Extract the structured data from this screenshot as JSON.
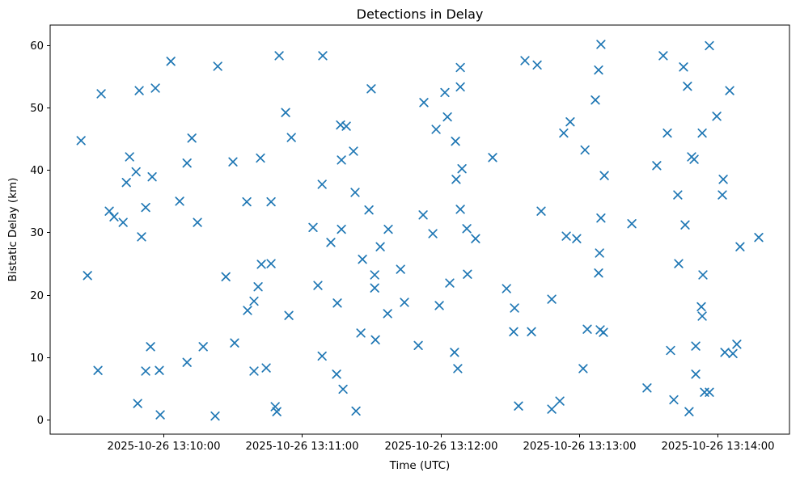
{
  "figure": {
    "title": "Detections in Delay",
    "x_axis_label": "Time (UTC)",
    "y_axis_label": "Bistatic Delay (km)"
  },
  "chart_data": {
    "type": "scatter",
    "title": "Detections in Delay",
    "xlabel": "Time (UTC)",
    "ylabel": "Bistatic Delay (km)",
    "marker": "x",
    "marker_color": "#1f77b4",
    "grid": false,
    "legend": "none",
    "x_unit": "seconds after 2025-10-26 13:10:00 UTC",
    "xlim_seconds": [
      -49.1,
      271.2
    ],
    "ylim": [
      -2.3,
      63.2
    ],
    "x_tick_seconds": [
      0,
      60,
      120,
      180,
      240
    ],
    "x_tick_labels": [
      "2025-10-26 13:10:00",
      "2025-10-26 13:11:00",
      "2025-10-26 13:12:00",
      "2025-10-26 13:13:00",
      "2025-10-26 13:14:00"
    ],
    "y_ticks": [
      0,
      10,
      20,
      30,
      40,
      50,
      60
    ],
    "points_format": [
      "t_seconds",
      "bistatic_delay_km"
    ],
    "points": [
      [
        -35.7,
        44.7
      ],
      [
        -32.9,
        23.1
      ],
      [
        -28.4,
        7.9
      ],
      [
        -27.0,
        52.2
      ],
      [
        -23.5,
        33.4
      ],
      [
        -21.4,
        32.5
      ],
      [
        -17.5,
        31.6
      ],
      [
        -16.1,
        38.0
      ],
      [
        -14.7,
        42.1
      ],
      [
        -11.9,
        39.7
      ],
      [
        -11.2,
        2.6
      ],
      [
        -10.5,
        52.7
      ],
      [
        -9.5,
        29.3
      ],
      [
        -7.7,
        34.0
      ],
      [
        -7.7,
        7.8
      ],
      [
        -5.6,
        11.7
      ],
      [
        -4.9,
        38.9
      ],
      [
        -3.5,
        53.1
      ],
      [
        -1.8,
        7.9
      ],
      [
        -1.4,
        0.8
      ],
      [
        3.2,
        57.4
      ],
      [
        7.0,
        35.0
      ],
      [
        10.2,
        41.1
      ],
      [
        10.2,
        9.2
      ],
      [
        12.3,
        45.1
      ],
      [
        14.7,
        31.6
      ],
      [
        17.2,
        11.7
      ],
      [
        22.4,
        0.6
      ],
      [
        23.5,
        56.6
      ],
      [
        27.0,
        22.9
      ],
      [
        30.1,
        41.3
      ],
      [
        30.8,
        12.3
      ],
      [
        36.1,
        34.9
      ],
      [
        36.4,
        17.5
      ],
      [
        39.2,
        19.0
      ],
      [
        39.2,
        7.8
      ],
      [
        41.0,
        21.3
      ],
      [
        42.0,
        41.9
      ],
      [
        42.4,
        24.9
      ],
      [
        44.5,
        8.3
      ],
      [
        46.6,
        34.9
      ],
      [
        46.6,
        25.0
      ],
      [
        48.4,
        2.1
      ],
      [
        49.1,
        1.3
      ],
      [
        50.1,
        58.3
      ],
      [
        52.9,
        49.2
      ],
      [
        54.3,
        16.7
      ],
      [
        55.4,
        45.2
      ],
      [
        64.8,
        30.8
      ],
      [
        66.9,
        21.5
      ],
      [
        68.7,
        37.7
      ],
      [
        68.7,
        10.2
      ],
      [
        69.0,
        58.3
      ],
      [
        72.5,
        28.4
      ],
      [
        75.0,
        7.3
      ],
      [
        75.3,
        18.7
      ],
      [
        76.7,
        47.2
      ],
      [
        77.1,
        41.6
      ],
      [
        77.1,
        30.5
      ],
      [
        77.8,
        4.9
      ],
      [
        79.2,
        47.0
      ],
      [
        82.3,
        43.0
      ],
      [
        83.0,
        36.4
      ],
      [
        83.4,
        1.4
      ],
      [
        85.5,
        13.9
      ],
      [
        86.2,
        25.7
      ],
      [
        89.0,
        33.6
      ],
      [
        90.0,
        53.0
      ],
      [
        91.5,
        23.2
      ],
      [
        91.5,
        21.1
      ],
      [
        91.8,
        12.8
      ],
      [
        93.9,
        27.7
      ],
      [
        97.1,
        17.0
      ],
      [
        97.4,
        30.5
      ],
      [
        102.7,
        24.1
      ],
      [
        104.4,
        18.8
      ],
      [
        110.4,
        11.9
      ],
      [
        112.5,
        32.8
      ],
      [
        112.8,
        50.8
      ],
      [
        116.7,
        29.8
      ],
      [
        118.1,
        46.5
      ],
      [
        119.5,
        18.3
      ],
      [
        121.9,
        52.4
      ],
      [
        123.0,
        48.5
      ],
      [
        124.0,
        21.9
      ],
      [
        126.1,
        10.8
      ],
      [
        126.5,
        44.6
      ],
      [
        126.8,
        38.5
      ],
      [
        127.5,
        8.2
      ],
      [
        128.6,
        56.4
      ],
      [
        128.6,
        53.3
      ],
      [
        128.6,
        33.7
      ],
      [
        129.3,
        40.2
      ],
      [
        131.4,
        30.6
      ],
      [
        131.7,
        23.3
      ],
      [
        135.2,
        29.0
      ],
      [
        142.6,
        42.0
      ],
      [
        148.6,
        21.0
      ],
      [
        151.7,
        14.1
      ],
      [
        152.1,
        17.9
      ],
      [
        153.8,
        2.2
      ],
      [
        156.6,
        57.5
      ],
      [
        159.4,
        14.1
      ],
      [
        161.9,
        56.8
      ],
      [
        163.6,
        33.4
      ],
      [
        168.2,
        19.3
      ],
      [
        168.2,
        1.7
      ],
      [
        171.7,
        3.0
      ],
      [
        173.4,
        45.9
      ],
      [
        174.5,
        29.4
      ],
      [
        176.2,
        47.7
      ],
      [
        179.0,
        29.0
      ],
      [
        181.8,
        8.2
      ],
      [
        182.6,
        43.2
      ],
      [
        183.6,
        14.5
      ],
      [
        187.1,
        51.2
      ],
      [
        188.5,
        56.0
      ],
      [
        188.5,
        23.5
      ],
      [
        188.9,
        26.7
      ],
      [
        189.2,
        14.4
      ],
      [
        189.5,
        60.1
      ],
      [
        189.5,
        32.3
      ],
      [
        190.6,
        14.0
      ],
      [
        191.0,
        39.1
      ],
      [
        202.9,
        31.4
      ],
      [
        209.5,
        5.1
      ],
      [
        213.7,
        40.7
      ],
      [
        216.5,
        58.3
      ],
      [
        218.3,
        45.9
      ],
      [
        219.7,
        11.1
      ],
      [
        221.1,
        3.2
      ],
      [
        222.8,
        36.0
      ],
      [
        223.2,
        25.0
      ],
      [
        225.3,
        56.5
      ],
      [
        226.0,
        31.2
      ],
      [
        227.0,
        53.4
      ],
      [
        227.7,
        1.3
      ],
      [
        228.8,
        42.1
      ],
      [
        229.9,
        41.7
      ],
      [
        230.6,
        11.8
      ],
      [
        230.6,
        7.3
      ],
      [
        233.0,
        18.1
      ],
      [
        233.4,
        45.9
      ],
      [
        233.4,
        16.6
      ],
      [
        233.7,
        23.2
      ],
      [
        234.4,
        4.4
      ],
      [
        236.5,
        59.9
      ],
      [
        236.5,
        4.4
      ],
      [
        239.7,
        48.6
      ],
      [
        242.1,
        36.0
      ],
      [
        242.5,
        38.5
      ],
      [
        243.2,
        10.8
      ],
      [
        245.3,
        52.7
      ],
      [
        246.7,
        10.6
      ],
      [
        248.4,
        12.1
      ],
      [
        249.8,
        27.7
      ],
      [
        257.9,
        29.2
      ]
    ]
  }
}
